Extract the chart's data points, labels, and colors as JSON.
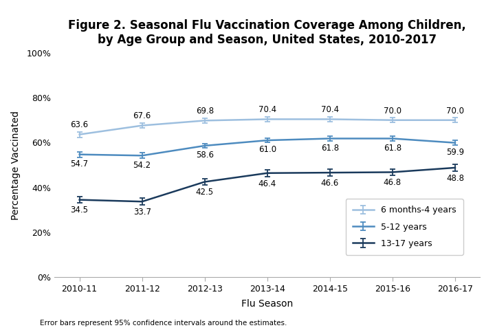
{
  "title": "Figure 2. Seasonal Flu Vaccination Coverage Among Children,\nby Age Group and Season, United States, 2010-2017",
  "xlabel": "Flu Season",
  "ylabel": "Percentage Vaccinated",
  "seasons": [
    "2010-11",
    "2011-12",
    "2012-13",
    "2013-14",
    "2014-15",
    "2015-16",
    "2016-17"
  ],
  "series": [
    {
      "label": "6 months-4 years",
      "values": [
        63.6,
        67.6,
        69.8,
        70.4,
        70.4,
        70.0,
        70.0
      ],
      "errors": [
        1.2,
        1.2,
        1.0,
        1.0,
        1.0,
        1.0,
        1.0
      ],
      "color": "#9dbfdf",
      "linewidth": 1.8,
      "marker": "none",
      "markersize": 0
    },
    {
      "label": "5-12 years",
      "values": [
        54.7,
        54.2,
        58.6,
        61.0,
        61.8,
        61.8,
        59.9
      ],
      "errors": [
        1.2,
        1.2,
        1.0,
        1.0,
        1.0,
        1.0,
        1.0
      ],
      "color": "#4d8bbf",
      "linewidth": 1.8,
      "marker": "none",
      "markersize": 0
    },
    {
      "label": "13-17 years",
      "values": [
        34.5,
        33.7,
        42.5,
        46.4,
        46.6,
        46.8,
        48.8
      ],
      "errors": [
        1.5,
        1.5,
        1.5,
        1.5,
        1.5,
        1.5,
        1.5
      ],
      "color": "#1a3a5c",
      "linewidth": 1.8,
      "marker": "none",
      "markersize": 0
    }
  ],
  "ylim": [
    0,
    100
  ],
  "yticks": [
    0,
    20,
    40,
    60,
    80,
    100
  ],
  "ytick_labels": [
    "0%",
    "20%",
    "40%",
    "60%",
    "80%",
    "100%"
  ],
  "footnote": "Error bars represent 95% confidence intervals around the estimates.",
  "background_color": "#ffffff",
  "annotations": [
    [
      63.6,
      67.6,
      69.8,
      70.4,
      70.4,
      70.0,
      70.0
    ],
    [
      54.7,
      54.2,
      58.6,
      61.0,
      61.8,
      61.8,
      59.9
    ],
    [
      34.5,
      33.7,
      42.5,
      46.4,
      46.6,
      46.8,
      48.8
    ]
  ],
  "ann_above": [
    true,
    false,
    false
  ],
  "ann_fontsize": 8.5
}
